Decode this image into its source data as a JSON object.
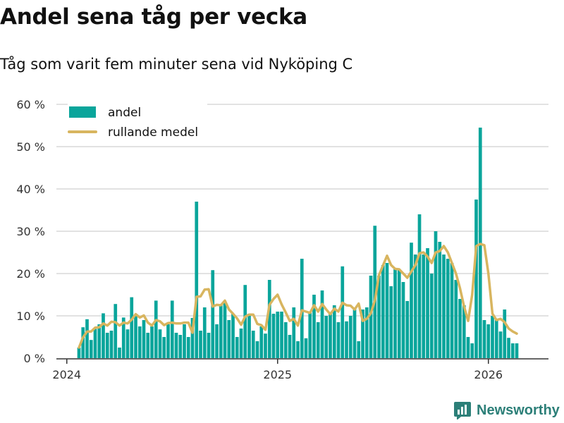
{
  "title": "Andel sena tåg per vecka",
  "subtitle": "Tåg som varit fem minuter sena vid Nyköping C",
  "brand": {
    "name": "Newsworthy",
    "color": "#2c7f78"
  },
  "colors": {
    "bars": "#0aa59b",
    "line": "#d8b55f",
    "grid": "#d9d9d9",
    "axis": "#333333"
  },
  "chart_data": {
    "type": "bar",
    "title": "Andel sena tåg per vecka",
    "xlabel": "",
    "ylabel": "",
    "ylim": [
      0,
      60
    ],
    "y_ticks": [
      0,
      10,
      20,
      30,
      40,
      50,
      60
    ],
    "y_tick_labels": [
      "0 %",
      "10 %",
      "20 %",
      "30 %",
      "40 %",
      "50 %",
      "60 %"
    ],
    "x_ticks": [
      {
        "label": "2024",
        "week_index": -3
      },
      {
        "label": "2025",
        "week_index": 49
      },
      {
        "label": "2026",
        "week_index": 101
      }
    ],
    "legend": {
      "position": "top-left",
      "entries": [
        "andel",
        "rullande medel"
      ]
    },
    "grid": true,
    "first_week_start": "2024-01-15",
    "series": [
      {
        "name": "andel",
        "type": "bar",
        "values": [
          2.5,
          7.3,
          9.2,
          4.3,
          6.9,
          8,
          10.6,
          6,
          6.5,
          12.8,
          2.5,
          9.6,
          6.8,
          14.4,
          10,
          7.5,
          9,
          6,
          7.5,
          13.6,
          6.8,
          5,
          8,
          13.6,
          6,
          5.5,
          8,
          5,
          9.5,
          37,
          6.5,
          12,
          6,
          20.8,
          8,
          12.5,
          13,
          9,
          10.5,
          5,
          7,
          17.3,
          10.5,
          6.5,
          4,
          7.5,
          5.8,
          18.5,
          10.5,
          11,
          11,
          8.5,
          5.5,
          12,
          4,
          23.5,
          4.7,
          11,
          15,
          8.5,
          16,
          10,
          10.5,
          12.5,
          8.5,
          21.7,
          8.7,
          10,
          11.5,
          4,
          11.5,
          12,
          19.5,
          31.3,
          19.5,
          22,
          22.5,
          17,
          21,
          21,
          18,
          13.5,
          27.3,
          24.5,
          34,
          24.5,
          26,
          20,
          30,
          27.5,
          24.5,
          23.5,
          22.5,
          18.5,
          14,
          12.5,
          5,
          3.5,
          37.5,
          54.5,
          9,
          8,
          10,
          9,
          6.3,
          11.5,
          4.8,
          3.5,
          3.5
        ]
      },
      {
        "name": "rullande medel",
        "type": "line",
        "values": [
          2.5,
          4.9,
          6.3,
          6.3,
          7.2,
          7.3,
          8.2,
          7.7,
          8.6,
          8.5,
          7.7,
          8.4,
          8.2,
          9.1,
          10.4,
          9.6,
          10.1,
          8.4,
          7.7,
          9,
          8.7,
          7.8,
          8.3,
          8.4,
          8.2,
          8.2,
          8.4,
          8.4,
          6,
          14.5,
          14.6,
          16.2,
          16.3,
          12.2,
          12.6,
          12.5,
          13.6,
          11.5,
          10.5,
          9.4,
          7.9,
          9.8,
          10.3,
          10.3,
          8.1,
          7.8,
          6.7,
          12.6,
          14,
          15,
          12.7,
          10.8,
          8.8,
          9.3,
          7.7,
          11.3,
          11,
          10.7,
          12.5,
          11,
          12.8,
          11.5,
          10.4,
          11.7,
          11,
          13.1,
          12.5,
          12.4,
          11.5,
          12.9,
          8.8,
          9.3,
          10.6,
          13.6,
          19.6,
          21.9,
          24.2,
          22,
          21.1,
          21,
          20,
          19,
          20.5,
          22,
          24.8,
          25,
          24,
          22.5,
          25,
          25.3,
          26.5,
          25,
          22.5,
          20,
          16.5,
          12.2,
          8.8,
          15,
          26.5,
          27,
          26.7,
          20,
          10.5,
          9,
          9.3,
          8.5,
          7,
          6.3,
          5.8
        ]
      }
    ]
  }
}
